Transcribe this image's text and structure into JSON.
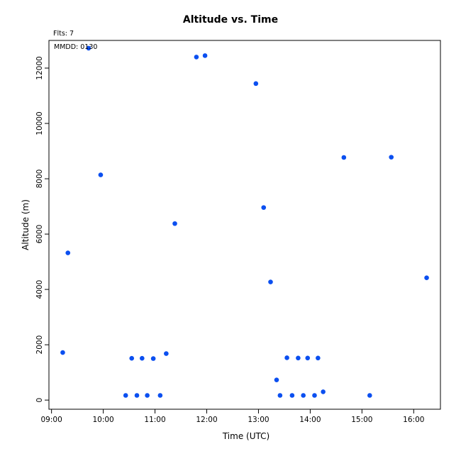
{
  "chart_data": {
    "type": "scatter",
    "title": "Altitude  vs. Time",
    "annotation_top_left": "Flts: 7",
    "annotation_inside": "MMDD: 0130",
    "xlabel": "Time (UTC)",
    "ylabel": "Altitude (m)",
    "x_tick_labels": [
      "09:00",
      "10:00",
      "11:00",
      "12:00",
      "13:00",
      "14:00",
      "15:00",
      "16:00"
    ],
    "y_tick_labels": [
      "0",
      "2000",
      "4000",
      "6000",
      "8000",
      "10000",
      "12000"
    ],
    "xlim": [
      "08:57",
      "16:31"
    ],
    "ylim": [
      -330,
      13000
    ],
    "grid": false,
    "series": [
      {
        "color": "#0b4ff0",
        "x": [
          "09:13",
          "09:19",
          "09:43",
          "09:57",
          "10:26",
          "10:33",
          "10:39",
          "10:45",
          "10:51",
          "10:58",
          "11:06",
          "11:13",
          "11:23",
          "11:48",
          "11:58",
          "12:57",
          "13:06",
          "13:14",
          "13:21",
          "13:25",
          "13:33",
          "13:39",
          "13:46",
          "13:52",
          "13:57",
          "14:05",
          "14:09",
          "14:15",
          "14:39",
          "15:09",
          "15:34",
          "16:15"
        ],
        "y": [
          1720,
          5320,
          12720,
          8140,
          170,
          1510,
          170,
          1510,
          170,
          1500,
          170,
          1680,
          6380,
          12400,
          12450,
          11440,
          6960,
          4270,
          730,
          170,
          1530,
          170,
          1520,
          170,
          1520,
          170,
          1520,
          300,
          8770,
          170,
          8780,
          4420
        ]
      }
    ]
  }
}
